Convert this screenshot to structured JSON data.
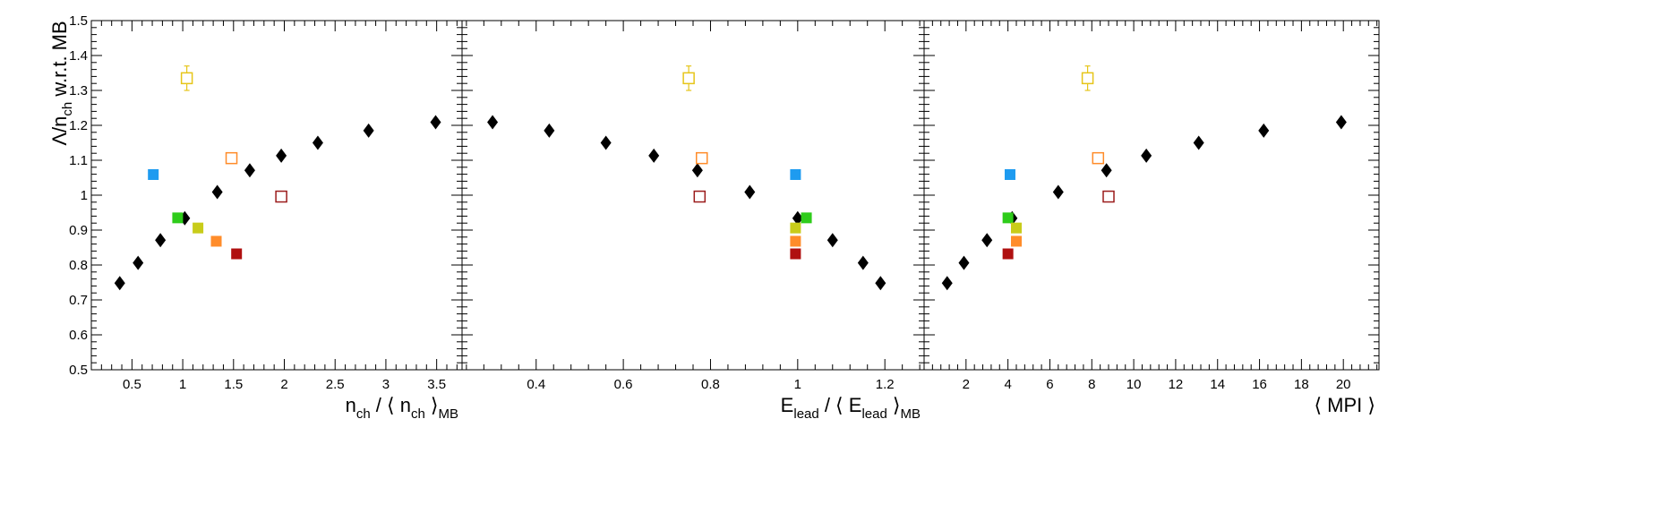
{
  "chart_data": {
    "type": "scatter",
    "ylabel": "Λ/n_ch w.r.t. MB",
    "ylabel_main": "Λ/n",
    "ylabel_sub": "ch",
    "ylabel_rest": " w.r.t. MB",
    "ylim": [
      0.5,
      1.5
    ],
    "yticks": [
      "0.5",
      "0.6",
      "0.7",
      "0.8",
      "0.9",
      "1",
      "1.1",
      "1.2",
      "1.3",
      "1.4",
      "1.5"
    ],
    "panels": [
      {
        "xlabel": "n_ch / ⟨ n_ch ⟩_MB",
        "xlabel_parts": [
          {
            "t": "n",
            "s": ""
          },
          {
            "t": "ch",
            "s": "sub"
          },
          {
            "t": " / ⟨ n",
            "s": ""
          },
          {
            "t": "ch",
            "s": "sub"
          },
          {
            "t": " ⟩",
            "s": ""
          },
          {
            "t": "MB",
            "s": "sub"
          }
        ],
        "xlim": [
          0.1,
          3.75
        ],
        "xticks": [
          "0.5",
          "1",
          "1.5",
          "2",
          "2.5",
          "3",
          "3.5"
        ],
        "series": [
          {
            "marker": "diamond",
            "color": "#000000",
            "points": [
              [
                0.38,
                0.748
              ],
              [
                0.56,
                0.806
              ],
              [
                0.78,
                0.871
              ],
              [
                1.02,
                0.934
              ],
              [
                1.34,
                1.009
              ],
              [
                1.66,
                1.071
              ],
              [
                1.97,
                1.113
              ],
              [
                2.33,
                1.15
              ],
              [
                2.83,
                1.185
              ],
              [
                3.49,
                1.209
              ]
            ]
          },
          {
            "marker": "square",
            "color": "#1e9bf0",
            "points": [
              [
                0.71,
                1.059
              ]
            ]
          },
          {
            "marker": "square",
            "color": "#2ecc1a",
            "points": [
              [
                0.95,
                0.935
              ]
            ]
          },
          {
            "marker": "square",
            "color": "#c8cc1a",
            "points": [
              [
                1.15,
                0.906
              ]
            ]
          },
          {
            "marker": "square",
            "color": "#ff8c2a",
            "points": [
              [
                1.33,
                0.868
              ]
            ]
          },
          {
            "marker": "square",
            "color": "#b01010",
            "points": [
              [
                1.53,
                0.832
              ]
            ]
          },
          {
            "marker": "open-square",
            "color": "#e6c519",
            "points": [
              [
                1.04,
                1.335
              ]
            ],
            "yerr": 0.035
          },
          {
            "marker": "open-square",
            "color": "#ff8c2a",
            "points": [
              [
                1.48,
                1.106
              ]
            ]
          },
          {
            "marker": "open-square",
            "color": "#9b1c1c",
            "points": [
              [
                1.97,
                0.996
              ]
            ]
          }
        ]
      },
      {
        "xlabel": "E_lead / ⟨ E_lead ⟩_MB",
        "xlabel_parts": [
          {
            "t": "E",
            "s": ""
          },
          {
            "t": "lead",
            "s": "sub"
          },
          {
            "t": " / ⟨ E",
            "s": ""
          },
          {
            "t": "lead",
            "s": "sub"
          },
          {
            "t": " ⟩",
            "s": ""
          },
          {
            "t": "MB",
            "s": "sub"
          }
        ],
        "xlim": [
          0.23,
          1.29
        ],
        "xticks": [
          "0.4",
          "0.6",
          "0.8",
          "1",
          "1.2"
        ],
        "series": [
          {
            "marker": "diamond",
            "color": "#000000",
            "points": [
              [
                0.3,
                1.209
              ],
              [
                0.43,
                1.185
              ],
              [
                0.56,
                1.15
              ],
              [
                0.67,
                1.113
              ],
              [
                0.77,
                1.071
              ],
              [
                0.89,
                1.009
              ],
              [
                1.0,
                0.934
              ],
              [
                1.08,
                0.871
              ],
              [
                1.15,
                0.806
              ],
              [
                1.19,
                0.748
              ]
            ]
          },
          {
            "marker": "square",
            "color": "#1e9bf0",
            "points": [
              [
                0.995,
                1.059
              ]
            ]
          },
          {
            "marker": "square",
            "color": "#2ecc1a",
            "points": [
              [
                1.02,
                0.935
              ]
            ]
          },
          {
            "marker": "square",
            "color": "#c8cc1a",
            "points": [
              [
                0.995,
                0.906
              ]
            ]
          },
          {
            "marker": "square",
            "color": "#ff8c2a",
            "points": [
              [
                0.995,
                0.868
              ]
            ]
          },
          {
            "marker": "square",
            "color": "#b01010",
            "points": [
              [
                0.995,
                0.832
              ]
            ]
          },
          {
            "marker": "open-square",
            "color": "#e6c519",
            "points": [
              [
                0.75,
                1.335
              ]
            ],
            "yerr": 0.035
          },
          {
            "marker": "open-square",
            "color": "#ff8c2a",
            "points": [
              [
                0.78,
                1.106
              ]
            ]
          },
          {
            "marker": "open-square",
            "color": "#9b1c1c",
            "points": [
              [
                0.775,
                0.996
              ]
            ]
          }
        ]
      },
      {
        "xlabel": "⟨ MPI ⟩",
        "xlabel_parts": [
          {
            "t": "⟨ MPI ⟩",
            "s": ""
          }
        ],
        "xlim": [
          0,
          21.7
        ],
        "xticks": [
          "2",
          "4",
          "6",
          "8",
          "10",
          "12",
          "14",
          "16",
          "18",
          "20"
        ],
        "series": [
          {
            "marker": "diamond",
            "color": "#000000",
            "points": [
              [
                1.1,
                0.748
              ],
              [
                1.9,
                0.806
              ],
              [
                3.0,
                0.871
              ],
              [
                4.2,
                0.934
              ],
              [
                6.4,
                1.009
              ],
              [
                8.7,
                1.071
              ],
              [
                10.6,
                1.113
              ],
              [
                13.1,
                1.15
              ],
              [
                16.2,
                1.185
              ],
              [
                19.9,
                1.209
              ]
            ]
          },
          {
            "marker": "square",
            "color": "#1e9bf0",
            "points": [
              [
                4.1,
                1.059
              ]
            ]
          },
          {
            "marker": "square",
            "color": "#2ecc1a",
            "points": [
              [
                4.0,
                0.935
              ]
            ]
          },
          {
            "marker": "square",
            "color": "#c8cc1a",
            "points": [
              [
                4.4,
                0.906
              ]
            ]
          },
          {
            "marker": "square",
            "color": "#ff8c2a",
            "points": [
              [
                4.4,
                0.868
              ]
            ]
          },
          {
            "marker": "square",
            "color": "#b01010",
            "points": [
              [
                4.0,
                0.832
              ]
            ]
          },
          {
            "marker": "open-square",
            "color": "#e6c519",
            "points": [
              [
                7.8,
                1.335
              ]
            ],
            "yerr": 0.035
          },
          {
            "marker": "open-square",
            "color": "#ff8c2a",
            "points": [
              [
                8.3,
                1.106
              ]
            ]
          },
          {
            "marker": "open-square",
            "color": "#9b1c1c",
            "points": [
              [
                8.8,
                0.996
              ]
            ]
          }
        ]
      }
    ]
  }
}
